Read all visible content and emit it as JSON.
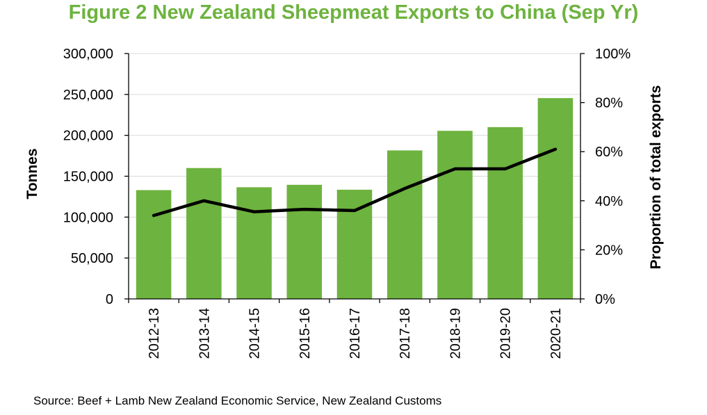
{
  "title": "Figure 2 New Zealand Sheepmeat Exports to China (Sep Yr)",
  "source": "Source: Beef + Lamb New Zealand Economic Service, New Zealand Customs",
  "colors": {
    "title": "#6db33f",
    "bar": "#6db33f",
    "line": "#000000",
    "grid": "#d9d9d9",
    "axis": "#000000"
  },
  "chart_data": {
    "type": "bar",
    "title": "Figure 2 New Zealand Sheepmeat Exports to China (Sep Yr)",
    "categories": [
      "2012-13",
      "2013-14",
      "2014-15",
      "2015-16",
      "2016-17",
      "2017-18",
      "2018-19",
      "2019-20",
      "2020-21"
    ],
    "series": [
      {
        "type": "bar",
        "axis": "left",
        "values": [
          133000,
          160000,
          136500,
          139500,
          133500,
          181500,
          205500,
          210000,
          245500
        ]
      },
      {
        "type": "line",
        "axis": "right",
        "values": [
          34,
          40,
          35.5,
          36.5,
          36,
          45,
          53,
          53,
          61
        ]
      }
    ],
    "ylabel": "Tonnes",
    "ylim": [
      0,
      300000
    ],
    "yticks": [
      "0",
      "50,000",
      "100,000",
      "150,000",
      "200,000",
      "250,000",
      "300,000"
    ],
    "y2label": "Proportion of total exports",
    "y2lim": [
      0,
      100
    ],
    "y2ticks": [
      "0%",
      "20%",
      "40%",
      "60%",
      "80%",
      "100%"
    ],
    "grid": true,
    "legend": "none"
  }
}
